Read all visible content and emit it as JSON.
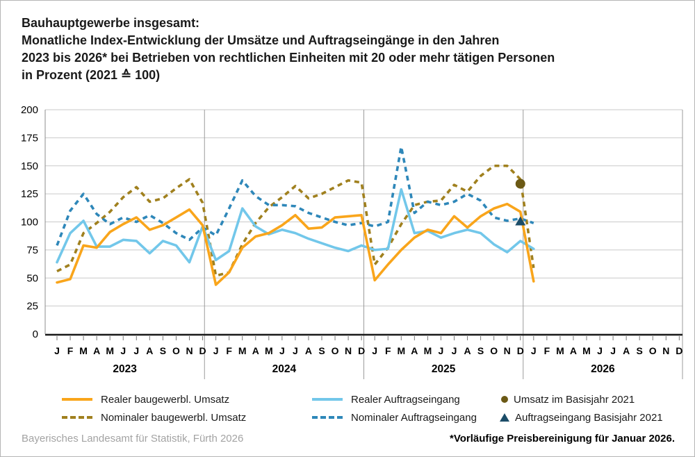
{
  "title": {
    "lines": [
      "Bauhauptgewerbe insgesamt:",
      "Monatliche Index-Entwicklung der Umsätze und Auftragseingänge in den Jahren",
      "2023 bis 2026* bei Betrieben von rechtlichen Einheiten mit 20 oder mehr tätigen Personen",
      "in Prozent (2021 ≙ 100)"
    ]
  },
  "y_axis": {
    "ticks": [
      0,
      25,
      50,
      75,
      100,
      125,
      150,
      175,
      200
    ],
    "ylim": [
      0,
      200
    ]
  },
  "x_axis": {
    "month_letters": [
      "J",
      "F",
      "M",
      "A",
      "M",
      "J",
      "J",
      "A",
      "S",
      "O",
      "N",
      "D"
    ],
    "years": [
      "2023",
      "2024",
      "2025",
      "2026"
    ]
  },
  "chart_data": {
    "type": "line",
    "x_labels": [
      "2023-01",
      "2023-02",
      "2023-03",
      "2023-04",
      "2023-05",
      "2023-06",
      "2023-07",
      "2023-08",
      "2023-09",
      "2023-10",
      "2023-11",
      "2023-12",
      "2024-01",
      "2024-02",
      "2024-03",
      "2024-04",
      "2024-05",
      "2024-06",
      "2024-07",
      "2024-08",
      "2024-09",
      "2024-10",
      "2024-11",
      "2024-12",
      "2025-01",
      "2025-02",
      "2025-03",
      "2025-04",
      "2025-05",
      "2025-06",
      "2025-07",
      "2025-08",
      "2025-09",
      "2025-10",
      "2025-11",
      "2025-12",
      "2026-01"
    ],
    "ylim": [
      0,
      200
    ],
    "grid": true,
    "series": [
      {
        "name": "Realer baugewerbl. Umsatz",
        "style": "solid",
        "color": "#f9a51b",
        "values": [
          46,
          49,
          79,
          77,
          91,
          98,
          104,
          93,
          97,
          104,
          111,
          97,
          44,
          55,
          77,
          87,
          90,
          97,
          106,
          94,
          95,
          104,
          105,
          106,
          48,
          62,
          75,
          86,
          93,
          90,
          105,
          95,
          105,
          112,
          116,
          109,
          47
        ]
      },
      {
        "name": "Nominaler baugewerbl. Umsatz",
        "style": "dashed",
        "color": "#a0801e",
        "values": [
          56,
          62,
          90,
          99,
          109,
          122,
          131,
          118,
          121,
          130,
          138,
          117,
          52,
          55,
          80,
          99,
          113,
          122,
          132,
          121,
          125,
          131,
          137,
          135,
          62,
          77,
          98,
          115,
          118,
          119,
          133,
          127,
          141,
          150,
          150,
          138,
          59
        ]
      },
      {
        "name": "Realer Auftragseingang",
        "style": "solid",
        "color": "#72c7ea",
        "values": [
          64,
          90,
          101,
          78,
          78,
          84,
          83,
          72,
          83,
          79,
          64,
          96,
          66,
          74,
          112,
          96,
          89,
          93,
          90,
          85,
          81,
          77,
          74,
          79,
          75,
          76,
          129,
          90,
          92,
          86,
          90,
          93,
          90,
          80,
          73,
          83,
          76
        ]
      },
      {
        "name": "Nominaler Auftragseingang",
        "style": "dashed",
        "color": "#2e87b9",
        "values": [
          79,
          110,
          125,
          107,
          98,
          104,
          100,
          106,
          99,
          90,
          84,
          95,
          88,
          112,
          137,
          123,
          115,
          115,
          114,
          108,
          104,
          100,
          97,
          99,
          96,
          100,
          167,
          108,
          118,
          115,
          118,
          125,
          119,
          104,
          101,
          103,
          99
        ]
      }
    ],
    "point_markers": [
      {
        "name": "Umsatz im Basisjahr 2021",
        "shape": "circle",
        "color": "#6b5915",
        "x_label": "2025-12",
        "value": 134
      },
      {
        "name": "Auftragseingang Basisjahr 2021",
        "shape": "triangle",
        "color": "#1c4d68",
        "x_label": "2025-12",
        "value": 100
      }
    ]
  },
  "footer": {
    "source": "Bayerisches Landesamt für Statistik, Fürth 2026",
    "note": "*Vorläufige Preisbereinigung für Januar 2026."
  }
}
